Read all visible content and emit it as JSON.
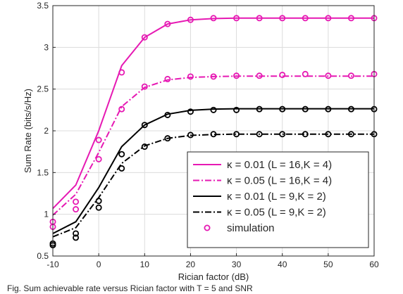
{
  "chart_data": {
    "type": "line",
    "xlabel": "Rician factor (dB)",
    "ylabel": "Sum Rate (bits/s/Hz)",
    "xlim": [
      -10,
      60
    ],
    "ylim": [
      0.5,
      3.5
    ],
    "xticks": [
      "-10",
      "0",
      "10",
      "20",
      "30",
      "40",
      "50",
      "60"
    ],
    "yticks": [
      "0.5",
      "1",
      "1.5",
      "2",
      "2.5",
      "3",
      "3.5"
    ],
    "grid": true,
    "legend_position": "bottom-right",
    "series": [
      {
        "name": "κ = 0.01 (L = 16,K = 4)",
        "color": "#e619b3",
        "dash": "solid",
        "x": [
          -10,
          -5,
          0,
          5,
          10,
          15,
          20,
          25,
          30,
          35,
          40,
          45,
          50,
          55,
          60
        ],
        "y": [
          1.07,
          1.35,
          2.0,
          2.78,
          3.12,
          3.28,
          3.33,
          3.345,
          3.35,
          3.35,
          3.35,
          3.35,
          3.35,
          3.35,
          3.35
        ]
      },
      {
        "name": "κ = 0.05 (L = 16,K = 4)",
        "color": "#e619b3",
        "dash": "dashdot",
        "x": [
          -10,
          -5,
          0,
          5,
          10,
          15,
          20,
          25,
          30,
          35,
          40,
          45,
          50,
          55,
          60
        ],
        "y": [
          0.99,
          1.24,
          1.74,
          2.29,
          2.52,
          2.61,
          2.64,
          2.65,
          2.655,
          2.655,
          2.655,
          2.655,
          2.655,
          2.655,
          2.655
        ]
      },
      {
        "name": "κ = 0.01 (L = 9,K = 2)",
        "color": "#000000",
        "dash": "solid",
        "x": [
          -10,
          -5,
          0,
          5,
          10,
          15,
          20,
          25,
          30,
          35,
          40,
          45,
          50,
          55,
          60
        ],
        "y": [
          0.77,
          0.91,
          1.32,
          1.81,
          2.07,
          2.2,
          2.245,
          2.26,
          2.265,
          2.265,
          2.265,
          2.265,
          2.265,
          2.265,
          2.265
        ]
      },
      {
        "name": "κ = 0.05 (L = 9,K = 2)",
        "color": "#000000",
        "dash": "dashdot",
        "x": [
          -10,
          -5,
          0,
          5,
          10,
          15,
          20,
          25,
          30,
          35,
          40,
          45,
          50,
          55,
          60
        ],
        "y": [
          0.73,
          0.84,
          1.2,
          1.61,
          1.82,
          1.91,
          1.945,
          1.955,
          1.96,
          1.96,
          1.96,
          1.96,
          1.96,
          1.96,
          1.96
        ]
      }
    ],
    "simulation_label": "simulation",
    "simulation": [
      {
        "color": "#e619b3",
        "x": [
          -10,
          -5,
          0,
          5,
          10,
          15,
          20,
          25,
          30,
          35,
          40,
          45,
          50,
          55,
          60
        ],
        "y": [
          0.91,
          1.15,
          1.89,
          2.7,
          3.12,
          3.28,
          3.33,
          3.35,
          3.35,
          3.35,
          3.35,
          3.35,
          3.35,
          3.35,
          3.35
        ]
      },
      {
        "color": "#e619b3",
        "x": [
          -10,
          -5,
          0,
          5,
          10,
          15,
          20,
          25,
          30,
          35,
          40,
          45,
          50,
          55,
          60
        ],
        "y": [
          0.85,
          1.06,
          1.66,
          2.26,
          2.53,
          2.62,
          2.65,
          2.65,
          2.66,
          2.66,
          2.67,
          2.68,
          2.66,
          2.66,
          2.68
        ]
      },
      {
        "color": "#000000",
        "x": [
          -10,
          -5,
          0,
          5,
          10,
          15,
          20,
          25,
          30,
          35,
          40,
          45,
          50,
          55,
          60
        ],
        "y": [
          0.65,
          0.77,
          1.16,
          1.72,
          2.07,
          2.19,
          2.23,
          2.25,
          2.25,
          2.26,
          2.26,
          2.26,
          2.26,
          2.26,
          2.26
        ]
      },
      {
        "color": "#000000",
        "x": [
          -10,
          -5,
          0,
          5,
          10,
          15,
          20,
          25,
          30,
          35,
          40,
          45,
          50,
          55,
          60
        ],
        "y": [
          0.63,
          0.72,
          1.08,
          1.55,
          1.81,
          1.91,
          1.95,
          1.96,
          1.96,
          1.96,
          1.96,
          1.96,
          1.96,
          1.96,
          1.96
        ]
      }
    ]
  },
  "caption_fragment": "Fig. Sum achievable rate versus Rician factor with T = 5 and SNR"
}
